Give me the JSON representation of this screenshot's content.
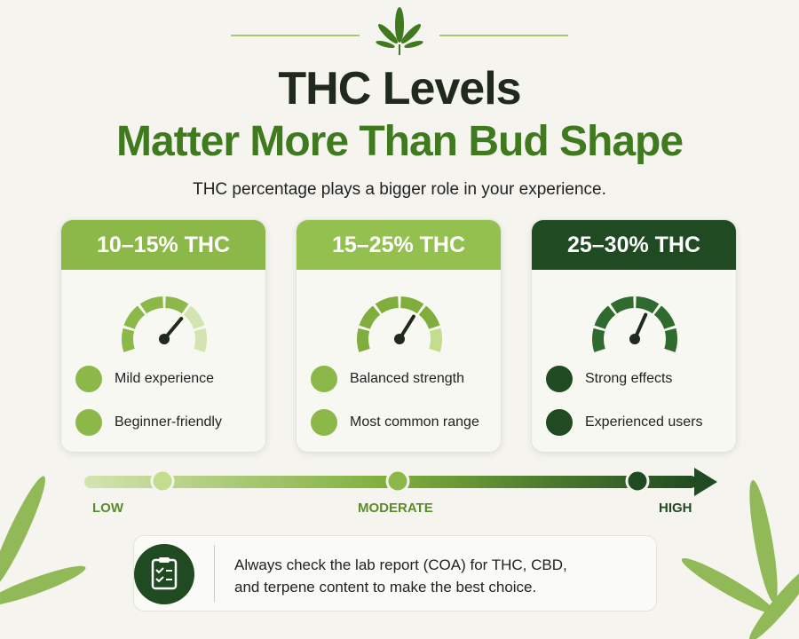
{
  "header": {
    "title": "THC Levels",
    "title_highlight": "Matter More Than Bud Shape",
    "subtitle": "THC percentage plays a bigger role in your experience."
  },
  "cards": [
    {
      "title": "10–15% THC",
      "features": [
        "Mild experience",
        "Beginner-friendly"
      ]
    },
    {
      "title": "15–25% THC",
      "features": [
        "Balanced strength",
        "Most common range"
      ]
    },
    {
      "title": "25–30% THC",
      "features": [
        "Strong effects",
        "Experienced users"
      ]
    }
  ],
  "scale": {
    "labels": [
      "LOW",
      "MODERATE",
      "HIGH"
    ]
  },
  "note": {
    "lines": [
      "Always check the lab report (COA) for THC, CBD,",
      "and terpene content to make the best choice."
    ]
  }
}
